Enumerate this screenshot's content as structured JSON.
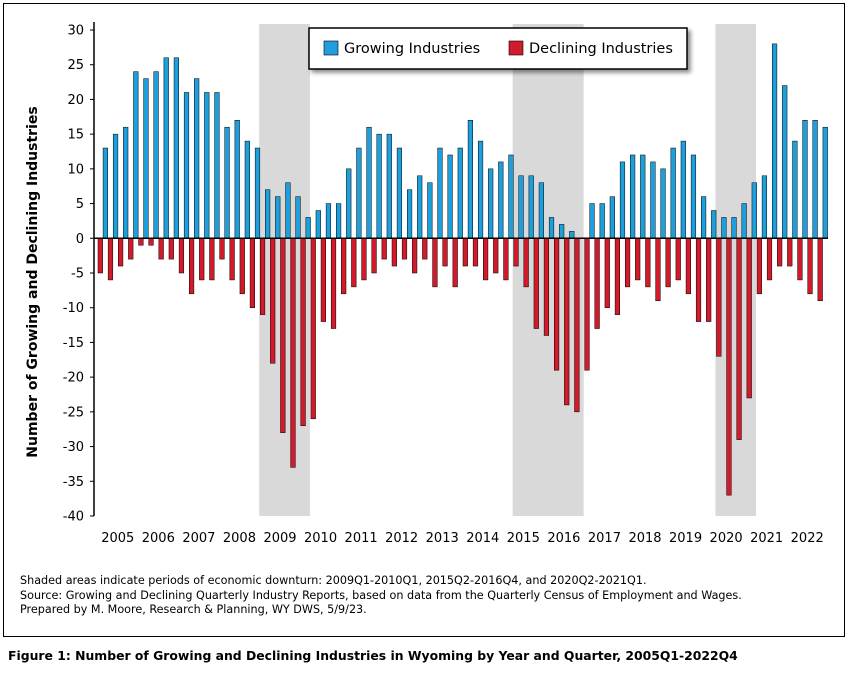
{
  "chart_data": {
    "type": "bar",
    "title": "",
    "ylabel": "Number of Growing and Declining Industries",
    "xlabel": "",
    "ylim": [
      -40,
      30
    ],
    "yticks": [
      30,
      25,
      20,
      15,
      10,
      5,
      0,
      -5,
      -10,
      -15,
      -20,
      -25,
      -30,
      -35,
      -40
    ],
    "year_labels": [
      "2005",
      "2006",
      "2007",
      "2008",
      "2009",
      "2010",
      "2011",
      "2012",
      "2013",
      "2014",
      "2015",
      "2016",
      "2017",
      "2018",
      "2019",
      "2020",
      "2021",
      "2022"
    ],
    "quarters_per_year": 4,
    "recessions": [
      {
        "start": "2009Q1",
        "end": "2010Q1"
      },
      {
        "start": "2015Q2",
        "end": "2016Q4"
      },
      {
        "start": "2020Q2",
        "end": "2021Q1"
      }
    ],
    "legend_position": "top-center",
    "series": [
      {
        "name": "Growing Industries",
        "color": "#1E9FDB",
        "values": [
          13,
          15,
          16,
          24,
          23,
          24,
          26,
          26,
          21,
          23,
          21,
          21,
          16,
          17,
          14,
          13,
          7,
          6,
          8,
          6,
          3,
          4,
          5,
          5,
          10,
          13,
          16,
          15,
          15,
          13,
          7,
          9,
          8,
          13,
          12,
          13,
          17,
          14,
          10,
          11,
          12,
          9,
          9,
          8,
          3,
          2,
          1,
          0,
          5,
          5,
          6,
          11,
          12,
          12,
          11,
          10,
          13,
          14,
          12,
          6,
          4,
          3,
          3,
          5,
          8,
          9,
          28,
          22,
          14,
          17,
          17,
          16
        ]
      },
      {
        "name": "Declining Industries",
        "color": "#D11A2A",
        "values": [
          -5,
          -6,
          -4,
          -3,
          -1,
          -1,
          -3,
          -3,
          -5,
          -8,
          -6,
          -6,
          -3,
          -6,
          -8,
          -10,
          -11,
          -18,
          -28,
          -33,
          -27,
          -26,
          -12,
          -13,
          -8,
          -7,
          -6,
          -5,
          -3,
          -4,
          -3,
          -5,
          -3,
          -7,
          -4,
          -7,
          -4,
          -4,
          -6,
          -5,
          -6,
          -4,
          -7,
          -13,
          -14,
          -19,
          -24,
          -25,
          -19,
          -13,
          -10,
          -11,
          -7,
          -6,
          -7,
          -9,
          -7,
          -6,
          -8,
          -12,
          -12,
          -17,
          -37,
          -29,
          -23,
          -8,
          -6,
          -4,
          -4,
          -6,
          -8,
          -9
        ]
      }
    ]
  },
  "notes": {
    "line1": "Shaded areas indicate periods of economic downturn: 2009Q1-2010Q1, 2015Q2-2016Q4, and 2020Q2-2021Q1.",
    "line2": "Source: Growing and Declining Quarterly Industry Reports, based on data from the Quarterly Census of Employment and Wages.",
    "line3": "Prepared by M. Moore, Research & Planning, WY DWS, 5/9/23."
  },
  "caption": "Figure 1: Number of Growing and Declining Industries in Wyoming by Year and Quarter, 2005Q1-2022Q4"
}
